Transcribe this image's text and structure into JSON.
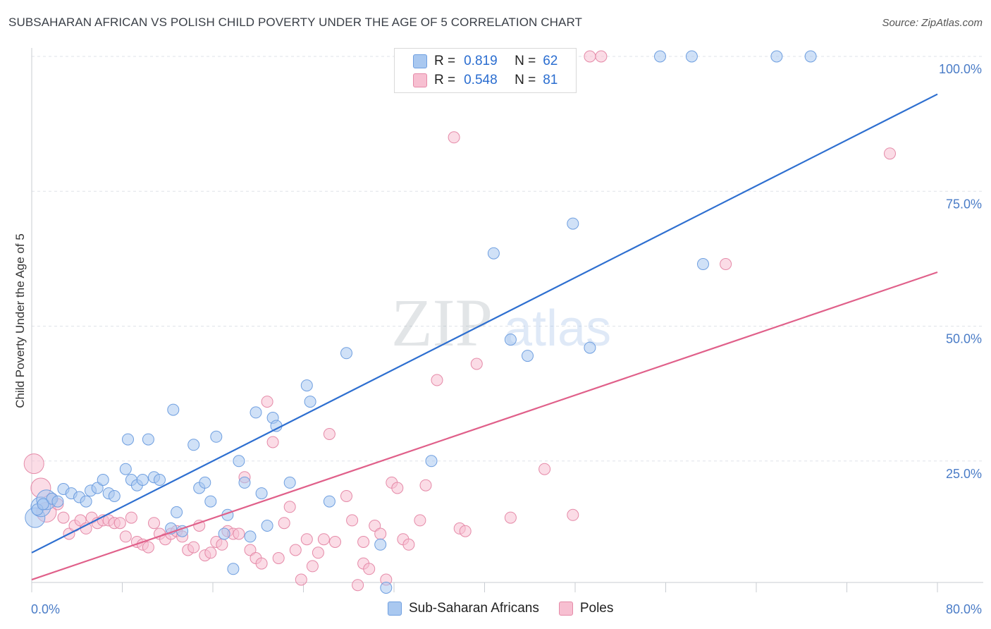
{
  "title": "SUBSAHARAN AFRICAN VS POLISH CHILD POVERTY UNDER THE AGE OF 5 CORRELATION CHART",
  "source": "Source: ZipAtlas.com",
  "watermark": {
    "zip": "ZIP",
    "atlas": "atlas"
  },
  "legend": {
    "rows": [
      {
        "r_label": "R =",
        "r_value": "0.819",
        "n_label": "N =",
        "n_value": "62",
        "color": "#a9c8f0",
        "border": "#6f9fe0"
      },
      {
        "r_label": "R =",
        "r_value": "0.548",
        "n_label": "N =",
        "n_value": "81",
        "color": "#f7bfd1",
        "border": "#e58aa8"
      }
    ]
  },
  "bottom_legend": [
    {
      "label": "Sub-Saharan Africans",
      "color": "#a9c8f0",
      "border": "#6f9fe0"
    },
    {
      "label": "Poles",
      "color": "#f7bfd1",
      "border": "#e58aa8"
    }
  ],
  "chart_data": {
    "type": "scatter",
    "title": "SUBSAHARAN AFRICAN VS POLISH CHILD POVERTY UNDER THE AGE OF 5 CORRELATION CHART",
    "xlabel": "",
    "ylabel": "Child Poverty Under the Age of 5",
    "xlim": [
      0,
      80
    ],
    "ylim": [
      0,
      100
    ],
    "x_tick_labels": [
      "0.0%",
      "80.0%"
    ],
    "y_tick_labels": [
      "25.0%",
      "50.0%",
      "75.0%",
      "100.0%"
    ],
    "y_ticks": [
      25,
      50,
      75,
      100
    ],
    "grid": true,
    "legend_position": "top-center",
    "series": [
      {
        "name": "Sub-Saharan Africans",
        "color": "#6f9fe0",
        "fill": "#a9c8f0",
        "trend": {
          "x": [
            0,
            80
          ],
          "y": [
            8,
            93
          ]
        },
        "points": [
          [
            0.3,
            14.5
          ],
          [
            0.8,
            16.5
          ],
          [
            1.3,
            17.8
          ],
          [
            1.8,
            18.0
          ],
          [
            2.3,
            17.5
          ],
          [
            2.8,
            19.8
          ],
          [
            3.5,
            19.0
          ],
          [
            4.2,
            18.3
          ],
          [
            4.8,
            17.5
          ],
          [
            5.2,
            19.5
          ],
          [
            5.8,
            20.0
          ],
          [
            6.3,
            21.5
          ],
          [
            6.8,
            19.0
          ],
          [
            7.3,
            18.5
          ],
          [
            8.3,
            23.5
          ],
          [
            8.5,
            29.0
          ],
          [
            8.8,
            21.5
          ],
          [
            9.3,
            20.5
          ],
          [
            9.8,
            21.5
          ],
          [
            10.3,
            29.0
          ],
          [
            10.8,
            22.0
          ],
          [
            11.3,
            21.5
          ],
          [
            12.3,
            12.5
          ],
          [
            12.5,
            34.5
          ],
          [
            12.8,
            15.5
          ],
          [
            13.3,
            12.0
          ],
          [
            14.3,
            28.0
          ],
          [
            14.8,
            20.0
          ],
          [
            15.3,
            21.0
          ],
          [
            15.8,
            17.5
          ],
          [
            16.3,
            29.5
          ],
          [
            17.0,
            11.5
          ],
          [
            17.3,
            15.0
          ],
          [
            17.8,
            5.0
          ],
          [
            18.3,
            25.0
          ],
          [
            18.8,
            21.0
          ],
          [
            19.3,
            11.0
          ],
          [
            19.8,
            34.0
          ],
          [
            20.3,
            19.0
          ],
          [
            20.8,
            13.0
          ],
          [
            21.3,
            33.0
          ],
          [
            21.6,
            31.5
          ],
          [
            22.8,
            21.0
          ],
          [
            24.3,
            39.0
          ],
          [
            24.6,
            36.0
          ],
          [
            26.3,
            17.5
          ],
          [
            27.8,
            45.0
          ],
          [
            30.8,
            9.5
          ],
          [
            31.3,
            1.5
          ],
          [
            35.3,
            25.0
          ],
          [
            40.8,
            63.5
          ],
          [
            42.3,
            47.5
          ],
          [
            43.8,
            44.5
          ],
          [
            47.8,
            69.0
          ],
          [
            49.3,
            46.0
          ],
          [
            55.5,
            100
          ],
          [
            58.3,
            100
          ],
          [
            59.3,
            61.5
          ],
          [
            65.8,
            100
          ],
          [
            68.8,
            100
          ],
          [
            0.5,
            16.0
          ],
          [
            1.0,
            17.0
          ]
        ]
      },
      {
        "name": "Poles",
        "color": "#e58aa8",
        "fill": "#f7bfd1",
        "trend": {
          "x": [
            0,
            80
          ],
          "y": [
            3,
            60
          ]
        },
        "points": [
          [
            0.2,
            24.5
          ],
          [
            0.8,
            20.0
          ],
          [
            1.3,
            15.5
          ],
          [
            1.8,
            18.0
          ],
          [
            2.3,
            17.0
          ],
          [
            2.8,
            14.5
          ],
          [
            3.3,
            11.5
          ],
          [
            3.8,
            13.0
          ],
          [
            4.3,
            14.0
          ],
          [
            4.8,
            12.5
          ],
          [
            5.3,
            14.5
          ],
          [
            5.8,
            13.5
          ],
          [
            6.3,
            14.0
          ],
          [
            6.8,
            14.0
          ],
          [
            7.3,
            13.5
          ],
          [
            7.8,
            13.5
          ],
          [
            8.3,
            11.0
          ],
          [
            8.8,
            14.5
          ],
          [
            9.3,
            10.0
          ],
          [
            9.8,
            9.5
          ],
          [
            10.3,
            9.0
          ],
          [
            10.8,
            13.5
          ],
          [
            11.3,
            11.5
          ],
          [
            11.8,
            10.5
          ],
          [
            12.3,
            11.5
          ],
          [
            12.8,
            12.0
          ],
          [
            13.3,
            11.0
          ],
          [
            13.8,
            8.5
          ],
          [
            14.3,
            9.0
          ],
          [
            14.8,
            13.0
          ],
          [
            15.3,
            7.5
          ],
          [
            15.8,
            8.0
          ],
          [
            16.3,
            10.0
          ],
          [
            16.8,
            9.5
          ],
          [
            17.3,
            12.0
          ],
          [
            17.8,
            11.5
          ],
          [
            18.3,
            11.5
          ],
          [
            18.8,
            22.0
          ],
          [
            19.3,
            8.5
          ],
          [
            19.8,
            7.0
          ],
          [
            20.3,
            6.0
          ],
          [
            20.8,
            36.0
          ],
          [
            21.3,
            28.5
          ],
          [
            21.8,
            7.0
          ],
          [
            22.3,
            13.5
          ],
          [
            22.8,
            16.5
          ],
          [
            23.3,
            8.5
          ],
          [
            23.8,
            3.0
          ],
          [
            24.3,
            10.5
          ],
          [
            24.8,
            5.5
          ],
          [
            25.3,
            8.0
          ],
          [
            25.8,
            10.5
          ],
          [
            26.3,
            30.0
          ],
          [
            26.8,
            10.0
          ],
          [
            27.8,
            18.5
          ],
          [
            28.3,
            14.0
          ],
          [
            28.8,
            2.0
          ],
          [
            29.3,
            6.0
          ],
          [
            29.8,
            5.0
          ],
          [
            30.3,
            13.0
          ],
          [
            30.8,
            11.5
          ],
          [
            31.3,
            3.0
          ],
          [
            31.8,
            21.0
          ],
          [
            32.3,
            20.0
          ],
          [
            32.8,
            10.5
          ],
          [
            33.3,
            9.5
          ],
          [
            34.3,
            14.0
          ],
          [
            34.8,
            20.5
          ],
          [
            35.8,
            40.0
          ],
          [
            37.3,
            85.0
          ],
          [
            37.8,
            12.5
          ],
          [
            38.3,
            12.0
          ],
          [
            39.3,
            43.0
          ],
          [
            42.3,
            14.5
          ],
          [
            45.3,
            23.5
          ],
          [
            47.8,
            15.0
          ],
          [
            49.3,
            100
          ],
          [
            50.3,
            100
          ],
          [
            61.3,
            61.5
          ],
          [
            75.8,
            82.0
          ],
          [
            29.3,
            10.0
          ]
        ]
      }
    ]
  }
}
